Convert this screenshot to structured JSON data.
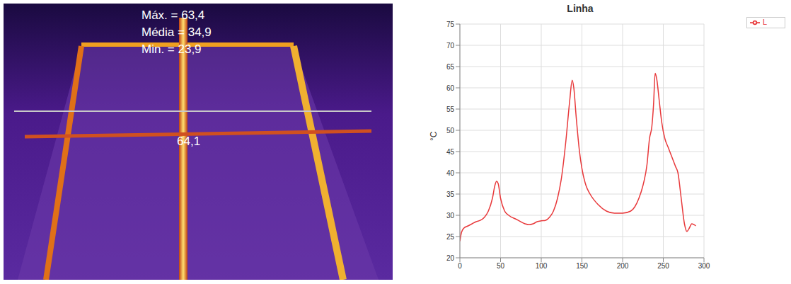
{
  "chart_data": {
    "type": "line",
    "title": "Linha",
    "y_label": "°C",
    "annotations": [
      "Máx. = 63,4",
      "Média = 34,9",
      "Min. = 23,9",
      "64,1"
    ],
    "x": [
      0,
      2,
      5,
      10,
      15,
      20,
      25,
      30,
      35,
      40,
      43,
      45,
      47,
      50,
      55,
      60,
      70,
      80,
      85,
      90,
      95,
      100,
      105,
      110,
      115,
      120,
      125,
      130,
      135,
      138,
      140,
      143,
      147,
      150,
      155,
      160,
      170,
      180,
      190,
      200,
      210,
      215,
      220,
      225,
      230,
      233,
      236,
      238,
      240,
      242,
      245,
      248,
      252,
      256,
      260,
      265,
      268,
      272,
      276,
      279,
      282,
      285,
      290
    ],
    "series": [
      {
        "name": "L",
        "color": "#e8393b",
        "values": [
          23.9,
          26,
          27,
          27.5,
          28,
          28.5,
          28.8,
          29.5,
          31,
          34,
          37,
          38,
          37.5,
          34,
          31,
          30,
          29,
          28,
          27.8,
          28,
          28.5,
          28.7,
          28.8,
          29.5,
          31,
          34,
          39,
          47,
          57,
          61.8,
          60,
          53,
          45,
          41,
          37,
          35,
          32.5,
          31,
          30.5,
          30.5,
          31,
          32,
          34,
          37,
          42,
          48,
          51,
          56,
          63.4,
          62,
          57,
          52,
          48,
          46,
          44,
          41.5,
          40,
          34,
          28,
          26.2,
          27,
          28,
          27.5
        ]
      }
    ],
    "xlim": [
      0,
      300
    ],
    "xticks": [
      0,
      50,
      100,
      150,
      200,
      250,
      300
    ],
    "ylim": [
      20,
      75
    ],
    "yticks": [
      20,
      25,
      30,
      35,
      40,
      45,
      50,
      55,
      60,
      65,
      70,
      75
    ],
    "grid": true,
    "legend": "top-right"
  }
}
